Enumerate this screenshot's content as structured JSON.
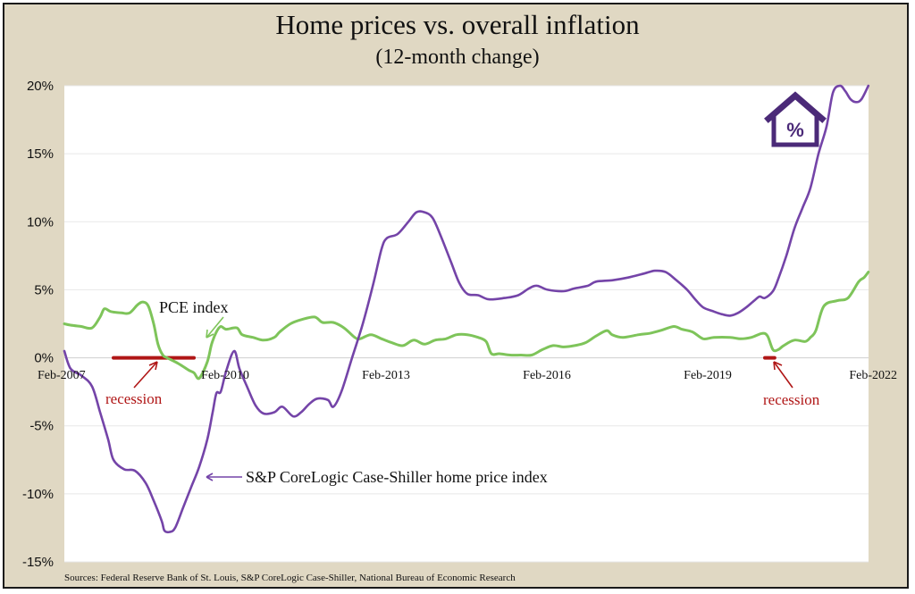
{
  "chart_data": {
    "type": "line",
    "title": "Home prices vs. overall inflation",
    "subtitle": "(12-month change)",
    "xlabel": "",
    "ylabel": "",
    "ylim": [
      -15,
      20
    ],
    "yticks": [
      20,
      15,
      10,
      5,
      0,
      -5,
      -10,
      -15
    ],
    "ytick_labels": [
      "20%",
      "15%",
      "10%",
      "5%",
      "0%",
      "-5%",
      "-10%",
      "-15%"
    ],
    "x_range": [
      2007.083,
      2022.083
    ],
    "xticks": [
      {
        "x": 2007.083,
        "label": "Feb-2007"
      },
      {
        "x": 2010.083,
        "label": "Feb-2010"
      },
      {
        "x": 2013.083,
        "label": "Feb-2013"
      },
      {
        "x": 2016.083,
        "label": "Feb-2016"
      },
      {
        "x": 2019.083,
        "label": "Feb-2019"
      },
      {
        "x": 2022.083,
        "label": "Feb-2022"
      }
    ],
    "grid": true,
    "series": [
      {
        "name": "PCE index",
        "color": "#7ec45a",
        "points": [
          [
            2007.08,
            2.5
          ],
          [
            2007.2,
            2.4
          ],
          [
            2007.4,
            2.3
          ],
          [
            2007.6,
            2.2
          ],
          [
            2007.75,
            3.0
          ],
          [
            2007.83,
            3.6
          ],
          [
            2007.95,
            3.4
          ],
          [
            2008.15,
            3.3
          ],
          [
            2008.3,
            3.3
          ],
          [
            2008.45,
            3.9
          ],
          [
            2008.55,
            4.1
          ],
          [
            2008.65,
            3.8
          ],
          [
            2008.75,
            2.5
          ],
          [
            2008.83,
            1.0
          ],
          [
            2008.92,
            0.2
          ],
          [
            2009.0,
            0.0
          ],
          [
            2009.2,
            -0.4
          ],
          [
            2009.4,
            -0.9
          ],
          [
            2009.5,
            -1.1
          ],
          [
            2009.6,
            -1.5
          ],
          [
            2009.75,
            -0.3
          ],
          [
            2009.83,
            1.0
          ],
          [
            2009.92,
            1.9
          ],
          [
            2010.0,
            2.3
          ],
          [
            2010.1,
            2.1
          ],
          [
            2010.3,
            2.2
          ],
          [
            2010.4,
            1.7
          ],
          [
            2010.6,
            1.5
          ],
          [
            2010.8,
            1.3
          ],
          [
            2011.0,
            1.5
          ],
          [
            2011.1,
            1.9
          ],
          [
            2011.3,
            2.5
          ],
          [
            2011.5,
            2.8
          ],
          [
            2011.75,
            3.0
          ],
          [
            2011.9,
            2.6
          ],
          [
            2012.1,
            2.6
          ],
          [
            2012.3,
            2.2
          ],
          [
            2012.5,
            1.5
          ],
          [
            2012.6,
            1.4
          ],
          [
            2012.8,
            1.7
          ],
          [
            2013.0,
            1.4
          ],
          [
            2013.2,
            1.1
          ],
          [
            2013.4,
            0.9
          ],
          [
            2013.6,
            1.3
          ],
          [
            2013.8,
            1.0
          ],
          [
            2014.0,
            1.3
          ],
          [
            2014.2,
            1.4
          ],
          [
            2014.4,
            1.7
          ],
          [
            2014.6,
            1.7
          ],
          [
            2014.8,
            1.5
          ],
          [
            2014.95,
            1.2
          ],
          [
            2015.05,
            0.3
          ],
          [
            2015.2,
            0.3
          ],
          [
            2015.4,
            0.2
          ],
          [
            2015.6,
            0.2
          ],
          [
            2015.8,
            0.2
          ],
          [
            2016.0,
            0.6
          ],
          [
            2016.2,
            0.9
          ],
          [
            2016.4,
            0.8
          ],
          [
            2016.6,
            0.9
          ],
          [
            2016.8,
            1.1
          ],
          [
            2017.0,
            1.6
          ],
          [
            2017.2,
            2.0
          ],
          [
            2017.3,
            1.7
          ],
          [
            2017.5,
            1.5
          ],
          [
            2017.8,
            1.7
          ],
          [
            2018.0,
            1.8
          ],
          [
            2018.2,
            2.0
          ],
          [
            2018.45,
            2.3
          ],
          [
            2018.6,
            2.1
          ],
          [
            2018.8,
            1.9
          ],
          [
            2019.0,
            1.4
          ],
          [
            2019.2,
            1.5
          ],
          [
            2019.5,
            1.5
          ],
          [
            2019.7,
            1.4
          ],
          [
            2019.9,
            1.5
          ],
          [
            2020.1,
            1.8
          ],
          [
            2020.2,
            1.6
          ],
          [
            2020.3,
            0.6
          ],
          [
            2020.4,
            0.6
          ],
          [
            2020.5,
            0.9
          ],
          [
            2020.7,
            1.3
          ],
          [
            2020.9,
            1.2
          ],
          [
            2021.0,
            1.5
          ],
          [
            2021.1,
            2.0
          ],
          [
            2021.25,
            3.8
          ],
          [
            2021.5,
            4.2
          ],
          [
            2021.7,
            4.4
          ],
          [
            2021.9,
            5.6
          ],
          [
            2022.0,
            5.9
          ],
          [
            2022.08,
            6.3
          ]
        ]
      },
      {
        "name": "S&P CoreLogic Case-Shiller home price index",
        "color": "#7444a8",
        "points": [
          [
            2007.08,
            0.5
          ],
          [
            2007.2,
            -0.8
          ],
          [
            2007.4,
            -1.3
          ],
          [
            2007.6,
            -2.1
          ],
          [
            2007.75,
            -4.0
          ],
          [
            2007.9,
            -6.0
          ],
          [
            2008.0,
            -7.5
          ],
          [
            2008.2,
            -8.2
          ],
          [
            2008.4,
            -8.3
          ],
          [
            2008.6,
            -9.2
          ],
          [
            2008.75,
            -10.5
          ],
          [
            2008.9,
            -12.0
          ],
          [
            2008.95,
            -12.7
          ],
          [
            2009.05,
            -12.8
          ],
          [
            2009.15,
            -12.5
          ],
          [
            2009.3,
            -11.0
          ],
          [
            2009.45,
            -9.5
          ],
          [
            2009.6,
            -8.0
          ],
          [
            2009.75,
            -6.0
          ],
          [
            2009.85,
            -4.0
          ],
          [
            2009.92,
            -2.6
          ],
          [
            2010.0,
            -2.5
          ],
          [
            2010.1,
            -1.0
          ],
          [
            2010.25,
            0.5
          ],
          [
            2010.35,
            -0.8
          ],
          [
            2010.5,
            -2.2
          ],
          [
            2010.65,
            -3.5
          ],
          [
            2010.8,
            -4.1
          ],
          [
            2011.0,
            -4.0
          ],
          [
            2011.15,
            -3.6
          ],
          [
            2011.35,
            -4.3
          ],
          [
            2011.5,
            -4.0
          ],
          [
            2011.65,
            -3.4
          ],
          [
            2011.8,
            -3.0
          ],
          [
            2012.0,
            -3.1
          ],
          [
            2012.1,
            -3.6
          ],
          [
            2012.25,
            -2.5
          ],
          [
            2012.45,
            0.0
          ],
          [
            2012.65,
            2.5
          ],
          [
            2012.85,
            5.5
          ],
          [
            2013.0,
            8.0
          ],
          [
            2013.1,
            8.8
          ],
          [
            2013.3,
            9.1
          ],
          [
            2013.5,
            10.0
          ],
          [
            2013.65,
            10.7
          ],
          [
            2013.8,
            10.7
          ],
          [
            2013.95,
            10.3
          ],
          [
            2014.1,
            9.0
          ],
          [
            2014.3,
            7.0
          ],
          [
            2014.45,
            5.5
          ],
          [
            2014.6,
            4.7
          ],
          [
            2014.8,
            4.6
          ],
          [
            2015.0,
            4.3
          ],
          [
            2015.3,
            4.4
          ],
          [
            2015.55,
            4.6
          ],
          [
            2015.75,
            5.1
          ],
          [
            2015.9,
            5.3
          ],
          [
            2016.1,
            5.0
          ],
          [
            2016.4,
            4.9
          ],
          [
            2016.6,
            5.1
          ],
          [
            2016.85,
            5.3
          ],
          [
            2017.0,
            5.6
          ],
          [
            2017.3,
            5.7
          ],
          [
            2017.6,
            5.9
          ],
          [
            2017.9,
            6.2
          ],
          [
            2018.1,
            6.4
          ],
          [
            2018.3,
            6.3
          ],
          [
            2018.5,
            5.7
          ],
          [
            2018.7,
            5.0
          ],
          [
            2018.85,
            4.3
          ],
          [
            2019.0,
            3.7
          ],
          [
            2019.2,
            3.4
          ],
          [
            2019.35,
            3.2
          ],
          [
            2019.5,
            3.1
          ],
          [
            2019.65,
            3.3
          ],
          [
            2019.8,
            3.7
          ],
          [
            2019.95,
            4.2
          ],
          [
            2020.05,
            4.5
          ],
          [
            2020.15,
            4.4
          ],
          [
            2020.3,
            4.9
          ],
          [
            2020.4,
            5.8
          ],
          [
            2020.55,
            7.5
          ],
          [
            2020.7,
            9.5
          ],
          [
            2020.85,
            11.0
          ],
          [
            2021.0,
            12.5
          ],
          [
            2021.15,
            15.0
          ],
          [
            2021.3,
            17.0
          ],
          [
            2021.42,
            19.5
          ],
          [
            2021.55,
            20.0
          ],
          [
            2021.65,
            19.6
          ],
          [
            2021.75,
            19.0
          ],
          [
            2021.85,
            18.8
          ],
          [
            2021.95,
            19.0
          ],
          [
            2022.08,
            20.0
          ]
        ]
      }
    ],
    "recessions": [
      {
        "start": 2008.0,
        "end": 2009.5
      },
      {
        "start": 2020.15,
        "end": 2020.33
      }
    ],
    "annotations": {
      "pce_label": "PCE index",
      "hpi_label": "S&P CoreLogic Case-Shiller home price index",
      "recession_label_1": "recession",
      "recession_label_2": "recession"
    },
    "source": "Sources: Federal Reserve Bank of St. Louis, S&P CoreLogic Case-Shiller, National Bureau of Economic Research",
    "colors": {
      "background": "#e0d8c3",
      "plot": "#ffffff",
      "recession": "#b01616",
      "icon": "#4b2a78",
      "grid": "#e8e8e8"
    },
    "icon": "house-percent-icon",
    "icon_glyph": "%"
  }
}
